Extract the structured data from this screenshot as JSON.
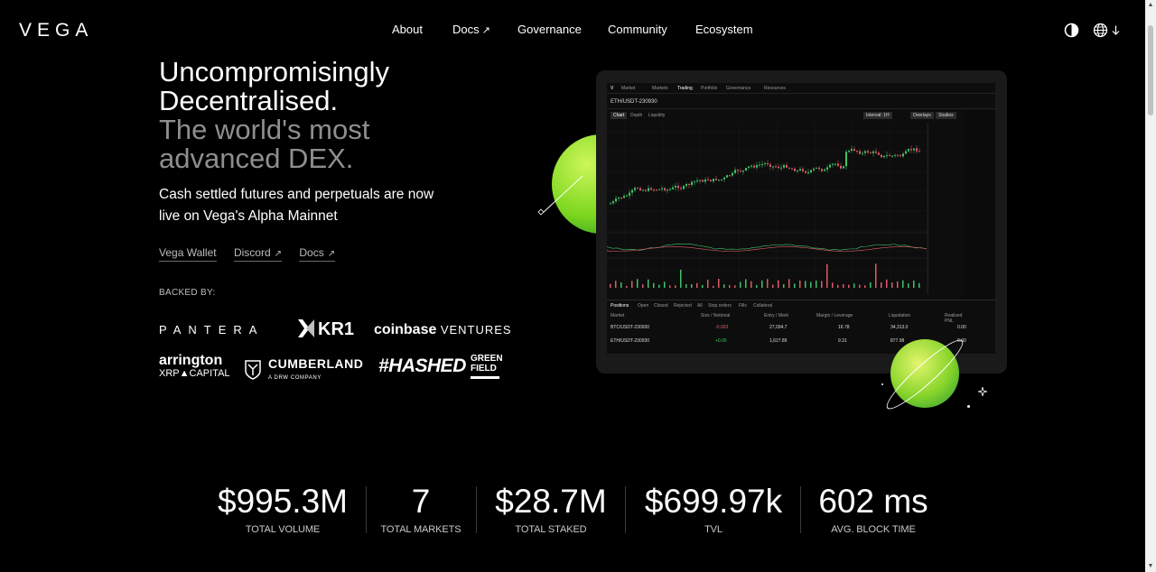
{
  "brand": {
    "logo_text": "VEGA"
  },
  "nav": {
    "items": [
      {
        "label": "About"
      },
      {
        "label": "Docs",
        "external": true
      },
      {
        "label": "Governance"
      },
      {
        "label": "Community"
      },
      {
        "label": "Ecosystem"
      }
    ],
    "arrow_glyph": "↗",
    "icons": [
      "theme-toggle-icon",
      "globe-icon",
      "chevron-down-icon"
    ]
  },
  "hero": {
    "title_line1": "Uncompromisingly",
    "title_line2": "Decentralised.",
    "title_line3": "The world's most",
    "title_line4": "advanced DEX.",
    "subtitle": "Cash settled futures and perpetuals are now live on Vega's Alpha Mainnet"
  },
  "links": [
    {
      "label": "Vega Wallet",
      "external": false
    },
    {
      "label": "Discord",
      "external": true
    },
    {
      "label": "Docs",
      "external": true
    }
  ],
  "backed_by": {
    "heading": "BACKED BY:",
    "logos": {
      "pantera": "PANTERA",
      "kr1": "KR1",
      "coinbase": "coinbase",
      "coinbase_suffix": "VENTURES",
      "arrington_1": "arrington",
      "arrington_2": "XRP",
      "arrington_3": "CAPITAL",
      "cumberland_1": "CUMBERLAND",
      "cumberland_2": "A DRW COMPANY",
      "hashed": "#HASHED",
      "greenfield_1": "GREEN",
      "greenfield_2": "FIELD"
    }
  },
  "trading_screenshot": {
    "nav": [
      "Market",
      "Markets",
      "Trading",
      "Portfolio",
      "Governance",
      "Resources"
    ],
    "pair": "ETH/USDT-230930",
    "chart_tabs": [
      "Chart",
      "Depth",
      "Liquidity"
    ],
    "chart_buttons": [
      "Interval: 1H",
      "Overlays",
      "Studies"
    ],
    "bottom_tabs": [
      "Positions",
      "Open",
      "Closed",
      "Rejected",
      "All",
      "Stop orders",
      "Fills",
      "Collateral"
    ],
    "bottom_headers": [
      "Market",
      "Size / Notional",
      "Entry / Mark",
      "Margin / Leverage",
      "Liquidation",
      "Realised PNL"
    ],
    "rows": [
      {
        "market": "BTC/USDT-230930",
        "size": "-0.003",
        "entry": "27,094.7",
        "margin": "16.78",
        "liq": "34,313.0",
        "pnl": "0.00"
      },
      {
        "market": "ETH/USDT-230930",
        "size": "+0.05",
        "entry": "1,627.89",
        "margin": "9.31",
        "liq": "877.98",
        "pnl": "0.00"
      }
    ]
  },
  "stats": [
    {
      "value": "$995.3M",
      "label": "TOTAL VOLUME"
    },
    {
      "value": "7",
      "label": "TOTAL MARKETS"
    },
    {
      "value": "$28.7M",
      "label": "TOTAL STAKED"
    },
    {
      "value": "$699.97k",
      "label": "TVL"
    },
    {
      "value": "602 ms",
      "label": "AVG. BLOCK TIME"
    }
  ],
  "colors": {
    "background": "#000000",
    "text": "#ffffff",
    "muted_title": "#8e8e8e",
    "accent_green": "#7bd61e"
  }
}
